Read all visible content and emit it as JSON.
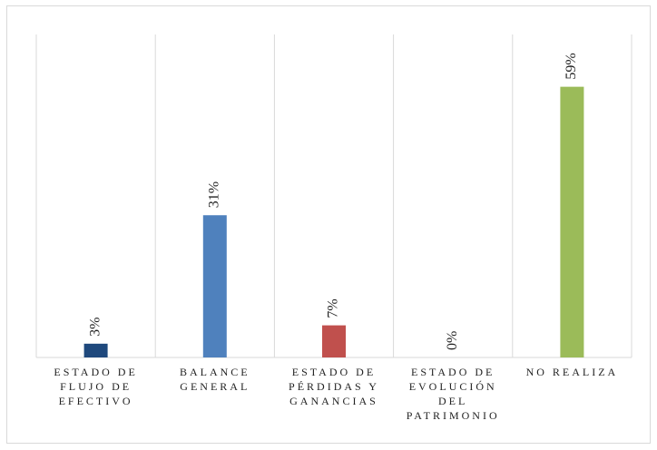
{
  "chart_data": {
    "type": "bar",
    "categories": [
      "ESTADO DE FLUJO DE EFECTIVO",
      "BALANCE GENERAL",
      "ESTADO DE PÉRDIDAS Y GANANCIAS",
      "ESTADO DE EVOLUCIÓN DEL PATRIMONIO",
      "NO REALIZA"
    ],
    "values": [
      3,
      31,
      7,
      0,
      59
    ],
    "value_labels": [
      "3%",
      "31%",
      "7%",
      "0%",
      "59%"
    ],
    "colors": [
      "#1f497d",
      "#4f81bd",
      "#c0504d",
      "#8064a2",
      "#9bbb59"
    ],
    "ylim": [
      0,
      70
    ]
  }
}
